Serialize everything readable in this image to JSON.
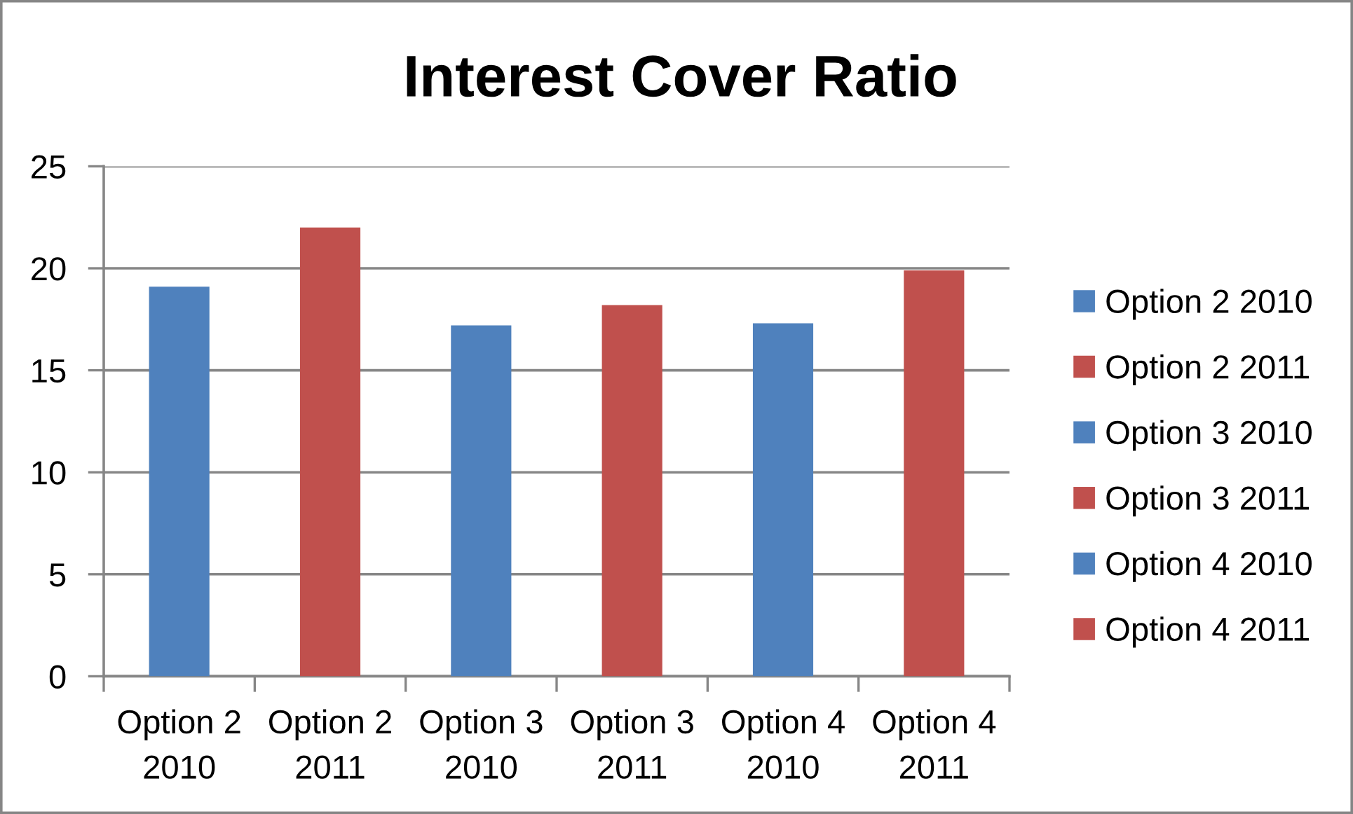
{
  "chart_data": {
    "type": "bar",
    "title": "Interest Cover Ratio",
    "stacked": true,
    "categories": [
      "Option 2 2010",
      "Option 2 2011",
      "Option 3 2010",
      "Option 3 2011",
      "Option 4 2010",
      "Option 4 2011"
    ],
    "series": [
      {
        "name": "Option 2 2010",
        "color": "#4f81bd",
        "values": [
          19.1,
          null,
          null,
          null,
          null,
          null
        ]
      },
      {
        "name": "Option 2 2011",
        "color": "#c0504d",
        "values": [
          null,
          22.0,
          null,
          null,
          null,
          null
        ]
      },
      {
        "name": "Option 3 2010",
        "color": "#4f81bd",
        "values": [
          null,
          null,
          17.2,
          null,
          null,
          null
        ]
      },
      {
        "name": "Option 3 2011",
        "color": "#c0504d",
        "values": [
          null,
          null,
          null,
          18.2,
          null,
          null
        ]
      },
      {
        "name": "Option 4 2010",
        "color": "#4f81bd",
        "values": [
          null,
          null,
          null,
          null,
          17.3,
          null
        ]
      },
      {
        "name": "Option 4 2011",
        "color": "#c0504d",
        "values": [
          null,
          null,
          null,
          null,
          null,
          19.9
        ]
      }
    ],
    "ylim": [
      0,
      25
    ],
    "yticks": [
      0,
      5,
      10,
      15,
      20,
      25
    ],
    "grid": "y",
    "legend": "right"
  }
}
